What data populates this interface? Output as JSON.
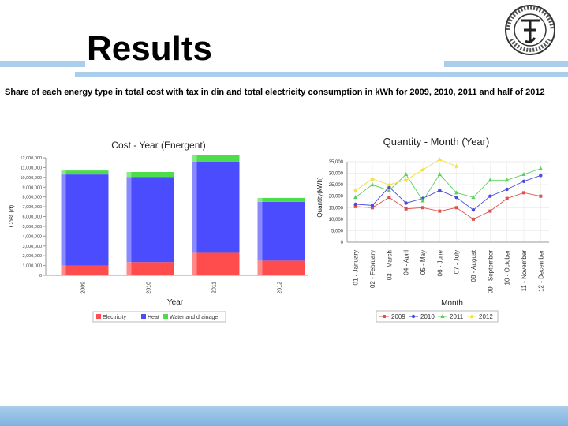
{
  "slide": {
    "title": "Results",
    "subtitle": "Share of each energy type in total cost with tax in din and total electricity consumption in kWh for 2009, 2010, 2011 and half of 2012",
    "logo_icon": "faculty-seal-logo",
    "colors": {
      "band": "#a9cdea"
    }
  },
  "chart_data": [
    {
      "type": "bar",
      "stacked": true,
      "title": "Cost - Year (Energent)",
      "xlabel": "Year",
      "ylabel": "Cost (d)",
      "categories": [
        "2009",
        "2010",
        "2011",
        "2012"
      ],
      "series": [
        {
          "name": "Electricity",
          "color": "#ff4c4c",
          "values": [
            1000000,
            1350000,
            2300000,
            1500000
          ]
        },
        {
          "name": "Heat",
          "color": "#4c4cff",
          "values": [
            9300000,
            8700000,
            9300000,
            6000000
          ]
        },
        {
          "name": "Water and drainage",
          "color": "#4cdc4c",
          "values": [
            400000,
            500000,
            700000,
            400000
          ]
        }
      ],
      "ylim": [
        0,
        12000000
      ],
      "yticks": [
        "0",
        "1,000,000",
        "2,000,000",
        "3,000,000",
        "4,000,000",
        "5,000,000",
        "6,000,000",
        "7,000,000",
        "8,000,000",
        "9,000,000",
        "10,000,000",
        "11,000,000",
        "12,000,000"
      ],
      "legend": "bottom",
      "grid": false
    },
    {
      "type": "line",
      "title": "Quantity - Month (Year)",
      "xlabel": "Month",
      "ylabel": "Quantity(kWh)",
      "categories": [
        "01 - January",
        "02 - February",
        "03 - March",
        "04 - April",
        "05 - May",
        "06 - June",
        "07 - July",
        "08 - August",
        "09 - September",
        "10 - October",
        "11 - November",
        "12 - December"
      ],
      "series": [
        {
          "name": "2009",
          "color": "#e0504a",
          "values": [
            15500,
            15000,
            19500,
            14500,
            15000,
            13500,
            15000,
            10000,
            13500,
            19000,
            21500,
            20000
          ]
        },
        {
          "name": "2010",
          "color": "#4a4ae0",
          "values": [
            16500,
            16000,
            24000,
            17000,
            19000,
            22500,
            19500,
            14000,
            20000,
            23000,
            26500,
            29000
          ]
        },
        {
          "name": "2011",
          "color": "#5cd05c",
          "values": [
            19500,
            25000,
            22500,
            29500,
            18000,
            29500,
            21500,
            19500,
            27000,
            27000,
            29500,
            32000
          ]
        },
        {
          "name": "2012",
          "color": "#f0e040",
          "values": [
            22500,
            27500,
            25000,
            27000,
            31500,
            36000,
            33000,
            null,
            null,
            null,
            null,
            null
          ]
        }
      ],
      "ylim": [
        0,
        35000
      ],
      "yticks": [
        "0",
        "5,000",
        "10,000",
        "15,000",
        "20,000",
        "25,000",
        "30,000",
        "35,000"
      ],
      "legend": "bottom",
      "grid": true
    }
  ]
}
